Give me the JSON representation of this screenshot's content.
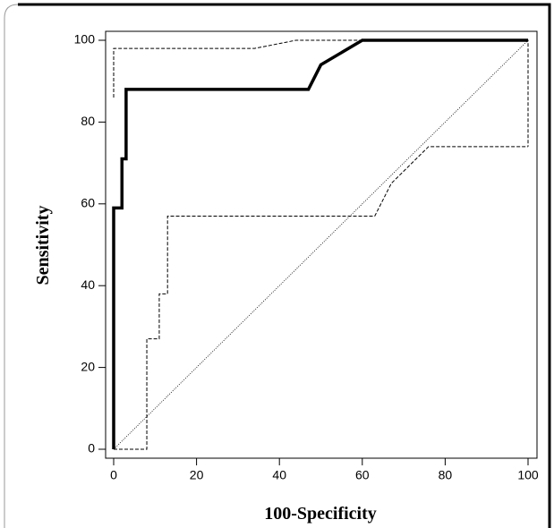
{
  "chart_data": {
    "type": "line",
    "xlabel": "100-Specificity",
    "ylabel": "Sensitivity",
    "xlim": [
      0,
      100
    ],
    "ylim": [
      0,
      100
    ],
    "xticks": [
      0,
      20,
      40,
      60,
      80,
      100
    ],
    "yticks": [
      0,
      20,
      40,
      60,
      80,
      100
    ],
    "series": [
      {
        "color": "#000000",
        "style": "solid",
        "width": 3.5,
        "x": [
          0,
          0,
          2,
          2,
          3,
          3,
          47,
          50,
          60,
          100
        ],
        "values": [
          0,
          59,
          59,
          71,
          71,
          88,
          88,
          94,
          100,
          100
        ]
      },
      {
        "color": "#000000",
        "style": "dashed",
        "width": 1,
        "x": [
          0,
          0,
          0,
          34,
          44,
          100,
          100
        ],
        "values": [
          86,
          92,
          98,
          98,
          100,
          100,
          74
        ]
      },
      {
        "color": "#000000",
        "style": "dashed",
        "width": 1,
        "x": [
          0,
          8,
          8,
          11,
          11,
          13,
          13,
          63,
          67,
          76,
          100
        ],
        "values": [
          0,
          0,
          27,
          27,
          38,
          38,
          57,
          57,
          65,
          74,
          74
        ]
      },
      {
        "color": "#000000",
        "style": "dotted",
        "width": 0.8,
        "x": [
          0,
          100
        ],
        "values": [
          0,
          100
        ]
      }
    ]
  }
}
